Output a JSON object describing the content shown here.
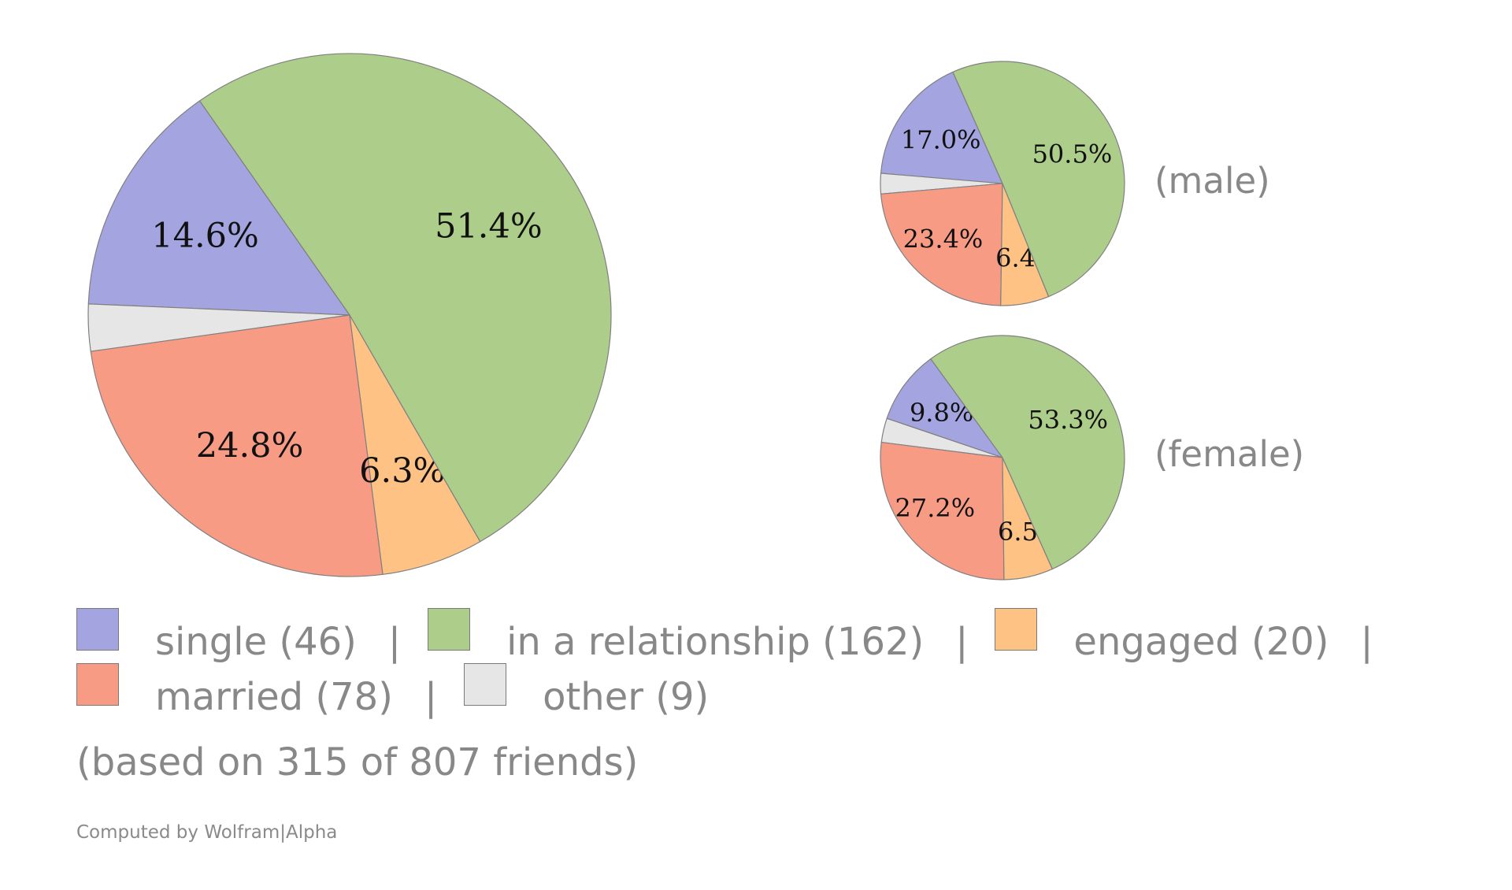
{
  "chart_data": [
    {
      "type": "pie",
      "name": "all",
      "slices": [
        {
          "key": "single",
          "percent": 14.6,
          "label": "14.6%"
        },
        {
          "key": "other",
          "percent": 2.9,
          "label": ""
        },
        {
          "key": "married",
          "percent": 24.8,
          "label": "24.8%"
        },
        {
          "key": "engaged",
          "percent": 6.3,
          "label": "6.3%"
        },
        {
          "key": "relationship",
          "percent": 51.4,
          "label": "51.4%"
        }
      ]
    },
    {
      "type": "pie",
      "name": "male",
      "group_label": "(male)",
      "slices": [
        {
          "key": "single",
          "percent": 17.0,
          "label": "17.0%"
        },
        {
          "key": "other",
          "percent": 2.7,
          "label": ""
        },
        {
          "key": "married",
          "percent": 23.4,
          "label": "23.4%"
        },
        {
          "key": "engaged",
          "percent": 6.4,
          "label": "6.4%"
        },
        {
          "key": "relationship",
          "percent": 50.5,
          "label": "50.5%"
        }
      ]
    },
    {
      "type": "pie",
      "name": "female",
      "group_label": "(female)",
      "slices": [
        {
          "key": "single",
          "percent": 9.8,
          "label": "9.8%"
        },
        {
          "key": "other",
          "percent": 3.2,
          "label": ""
        },
        {
          "key": "married",
          "percent": 27.2,
          "label": "27.2%"
        },
        {
          "key": "engaged",
          "percent": 6.5,
          "label": "6.5%"
        },
        {
          "key": "relationship",
          "percent": 53.3,
          "label": "53.3%"
        }
      ]
    }
  ],
  "colors": {
    "single": "#a4a4e0",
    "relationship": "#adcd8a",
    "engaged": "#fec284",
    "married": "#f79b85",
    "other": "#e6e6e6",
    "stroke": "#808080"
  },
  "legend": {
    "items": [
      {
        "key": "single",
        "label": "single",
        "count": "(46)"
      },
      {
        "key": "relationship",
        "label": "in a relationship",
        "count": "(162)"
      },
      {
        "key": "engaged",
        "label": "engaged",
        "count": "(20)"
      },
      {
        "key": "married",
        "label": "married",
        "count": "(78)"
      },
      {
        "key": "other",
        "label": "other",
        "count": "(9)"
      }
    ],
    "separator": "|"
  },
  "footnote": "(based on 315 of 807 friends)",
  "credit": "Computed by Wolfram|Alpha"
}
